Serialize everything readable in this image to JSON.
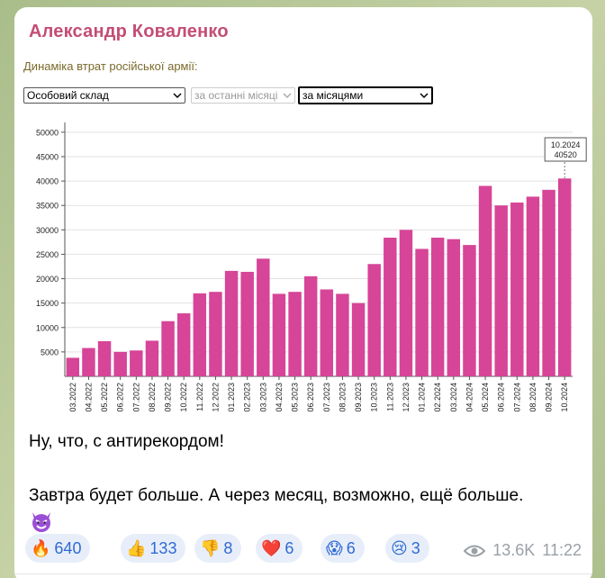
{
  "post": {
    "author": "Александр Коваленко",
    "text_line1": "Ну, что, с антирекордом!",
    "text_line2": "Завтра будет больше. А через месяц, возможно, ещё больше.",
    "emoji_icon": "smiling-devil-icon"
  },
  "embed": {
    "title": "Динаміка втрат російської армії:",
    "category_select": "Особовий склад",
    "period_select": "за останні місяці",
    "grouping_select": "за місяцями"
  },
  "chart_data": {
    "type": "bar",
    "title": "",
    "xlabel": "",
    "ylabel": "",
    "ylim": [
      0,
      52000
    ],
    "yticks": [
      5000,
      10000,
      15000,
      20000,
      25000,
      30000,
      35000,
      40000,
      45000,
      50000
    ],
    "grid": true,
    "bar_color": "#d64597",
    "categories": [
      "03.2022",
      "04.2022",
      "05.2022",
      "06.2022",
      "07.2022",
      "08.2022",
      "09.2022",
      "10.2022",
      "11.2022",
      "12.2022",
      "01.2023",
      "02.2023",
      "03.2023",
      "04.2023",
      "05.2023",
      "06.2023",
      "07.2023",
      "08.2023",
      "09.2023",
      "10.2023",
      "11.2023",
      "12.2023",
      "01.2024",
      "02.2024",
      "03.2024",
      "04.2024",
      "05.2024",
      "06.2024",
      "07.2024",
      "08.2024",
      "09.2024",
      "10.2024"
    ],
    "values": [
      3800,
      5800,
      7200,
      5000,
      5300,
      7300,
      11300,
      12900,
      17000,
      17300,
      21600,
      21400,
      24100,
      16900,
      17300,
      20500,
      17800,
      16900,
      15000,
      23000,
      28400,
      30000,
      26100,
      28400,
      28100,
      26900,
      39000,
      35000,
      35600,
      36800,
      38200,
      40520
    ],
    "tooltip": {
      "label": "10.2024",
      "value": "40520"
    }
  },
  "reactions": [
    {
      "icon": "fire-icon",
      "emoji": "🔥",
      "count": "640"
    },
    {
      "icon": "thumbs-up-icon",
      "emoji": "👍",
      "count": "133"
    },
    {
      "icon": "thumbs-down-icon",
      "emoji": "👎",
      "count": "8"
    },
    {
      "icon": "heart-icon",
      "emoji": "❤️",
      "count": "6"
    },
    {
      "icon": "screaming-face-icon",
      "emoji": "😱",
      "count": "6"
    },
    {
      "icon": "crying-face-icon",
      "emoji": "😢",
      "count": "3"
    }
  ],
  "meta": {
    "views_icon": "eye-icon",
    "views": "13.6K",
    "time": "11:22"
  }
}
